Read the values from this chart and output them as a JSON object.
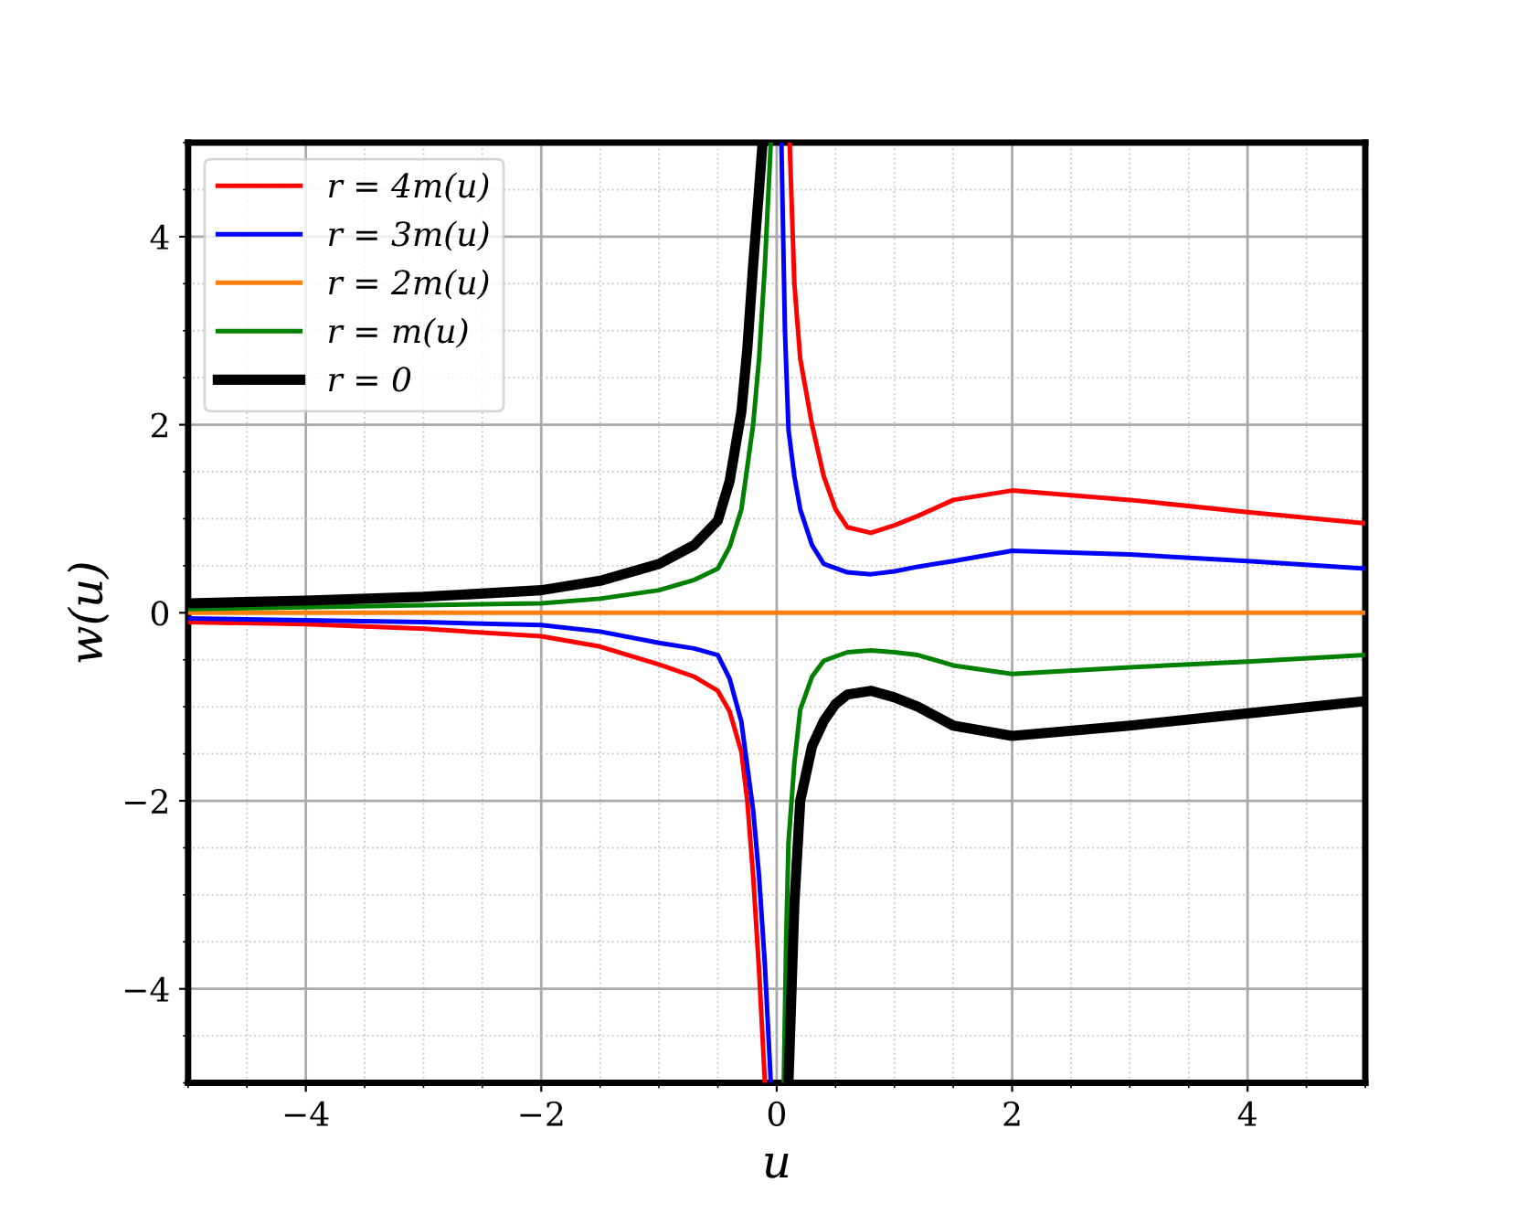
{
  "chart_data": {
    "type": "line",
    "xlabel": "u",
    "ylabel": "w(u)",
    "xlim": [
      -5,
      5
    ],
    "ylim": [
      -5,
      5
    ],
    "xticks": [
      {
        "value": -4,
        "label": "−4"
      },
      {
        "value": -2,
        "label": "−2"
      },
      0,
      2,
      4
    ],
    "yticks": [
      {
        "value": -4,
        "label": "−4"
      },
      {
        "value": -2,
        "label": "−2"
      },
      0,
      2,
      4
    ],
    "grid": true,
    "legend": "top left",
    "line_style": "solid",
    "marker": "none",
    "series": [
      {
        "name": "r = 4m(u)",
        "color": "#ff0000",
        "x": [
          -5,
          -4,
          -3,
          -2,
          -1.5,
          -1,
          -0.7,
          -0.5,
          -0.4,
          -0.3,
          -0.25,
          -0.2,
          -0.15,
          -0.1,
          null,
          0.11,
          0.15,
          0.2,
          0.3,
          0.4,
          0.5,
          0.6,
          0.8,
          1.0,
          1.2,
          1.5,
          2,
          3,
          4,
          5
        ],
        "values": [
          -0.1,
          -0.12,
          -0.17,
          -0.25,
          -0.36,
          -0.55,
          -0.68,
          -0.83,
          -1.05,
          -1.48,
          -2.0,
          -2.8,
          -3.8,
          -5,
          null,
          5,
          3.5,
          2.7,
          2.0,
          1.45,
          1.1,
          0.91,
          0.85,
          0.93,
          1.03,
          1.2,
          1.3,
          1.2,
          1.07,
          0.95
        ]
      },
      {
        "name": "r = 3m(u)",
        "color": "#0000ff",
        "x": [
          -5,
          -4,
          -3,
          -2,
          -1.5,
          -1,
          -0.7,
          -0.5,
          -0.4,
          -0.3,
          -0.2,
          -0.15,
          -0.1,
          -0.05,
          null,
          0.04,
          0.07,
          0.1,
          0.15,
          0.2,
          0.3,
          0.4,
          0.6,
          0.8,
          1.0,
          1.2,
          1.5,
          2,
          3,
          4,
          5
        ],
        "values": [
          -0.06,
          -0.08,
          -0.1,
          -0.13,
          -0.2,
          -0.32,
          -0.38,
          -0.45,
          -0.7,
          -1.16,
          -2.1,
          -2.8,
          -3.75,
          -5,
          null,
          5,
          3.0,
          1.95,
          1.45,
          1.1,
          0.72,
          0.52,
          0.43,
          0.41,
          0.44,
          0.49,
          0.55,
          0.66,
          0.62,
          0.55,
          0.47
        ]
      },
      {
        "name": "r = 2m(u)",
        "color": "#ff7f0e",
        "x": [
          -5,
          5
        ],
        "values": [
          0,
          0
        ]
      },
      {
        "name": "r = m(u)",
        "color": "#008000",
        "x": [
          -5,
          -4,
          -3,
          -2,
          -1.5,
          -1,
          -0.7,
          -0.5,
          -0.4,
          -0.3,
          -0.2,
          -0.15,
          -0.1,
          -0.05,
          null,
          0.06,
          0.08,
          0.1,
          0.15,
          0.2,
          0.3,
          0.4,
          0.6,
          0.8,
          1.0,
          1.2,
          1.5,
          2,
          3,
          4,
          5
        ],
        "values": [
          0.04,
          0.06,
          0.08,
          0.1,
          0.15,
          0.24,
          0.35,
          0.47,
          0.7,
          1.1,
          2.0,
          2.7,
          3.7,
          5,
          null,
          -5,
          -3.5,
          -2.45,
          -1.6,
          -1.03,
          -0.68,
          -0.51,
          -0.42,
          -0.4,
          -0.42,
          -0.45,
          -0.56,
          -0.65,
          -0.58,
          -0.52,
          -0.45
        ]
      },
      {
        "name": "r = 0",
        "color": "#000000",
        "x": [
          -5,
          -4,
          -3,
          -2,
          -1.5,
          -1,
          -0.7,
          -0.5,
          -0.4,
          -0.3,
          -0.25,
          -0.2,
          -0.15,
          -0.12,
          null,
          0.1,
          0.15,
          0.2,
          0.3,
          0.4,
          0.5,
          0.6,
          0.8,
          1.0,
          1.2,
          1.5,
          2,
          3,
          4,
          5
        ],
        "values": [
          0.1,
          0.13,
          0.17,
          0.24,
          0.34,
          0.52,
          0.72,
          0.98,
          1.4,
          2.14,
          2.8,
          3.7,
          4.5,
          5,
          null,
          -5,
          -3.1,
          -2.0,
          -1.42,
          -1.15,
          -0.97,
          -0.87,
          -0.83,
          -0.9,
          -1.0,
          -1.2,
          -1.31,
          -1.2,
          -1.07,
          -0.94
        ]
      }
    ]
  }
}
